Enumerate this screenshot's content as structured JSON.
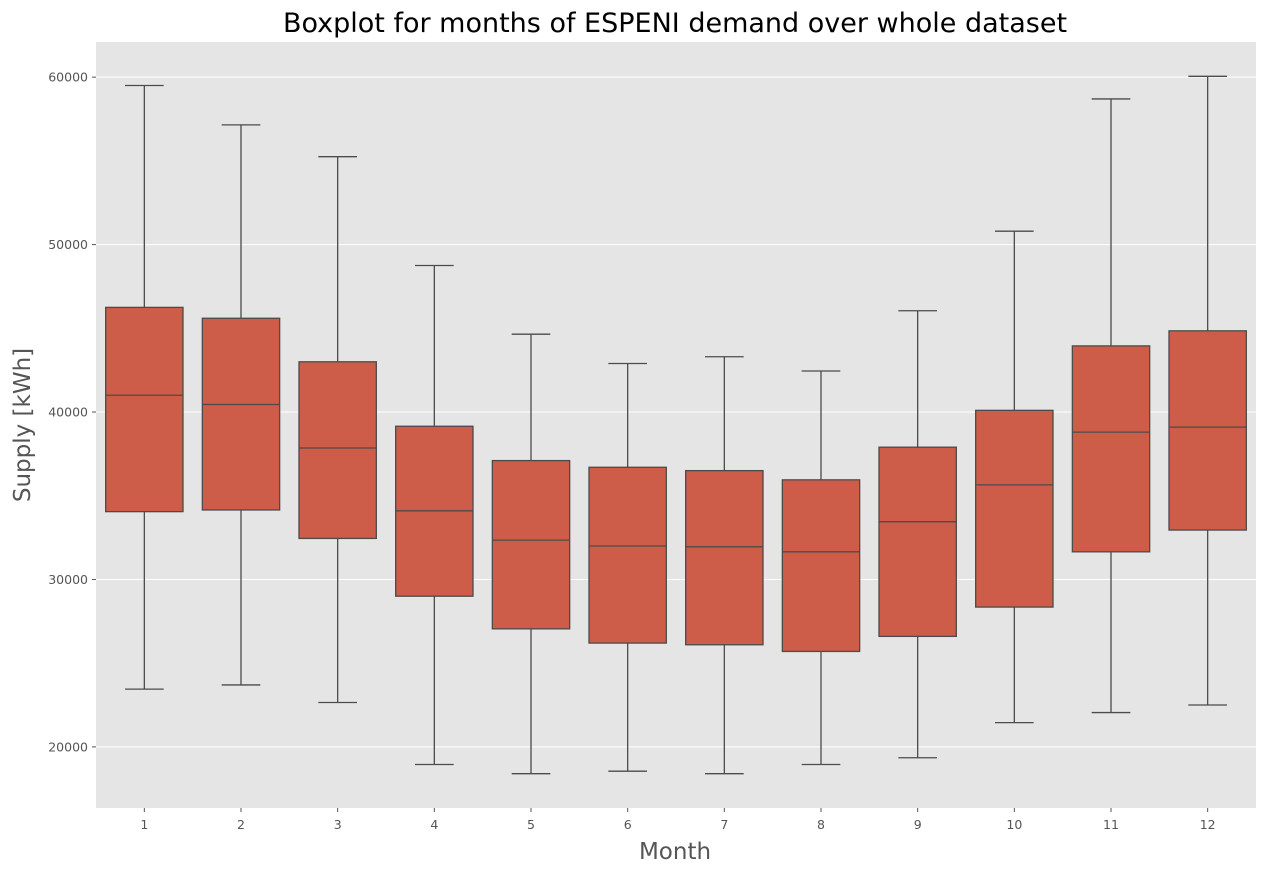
{
  "chart_data": {
    "type": "box",
    "title": "Boxplot for months of ESPENI demand over whole dataset",
    "xlabel": "Month",
    "ylabel": "Supply [kWh]",
    "categories": [
      "1",
      "2",
      "3",
      "4",
      "5",
      "6",
      "7",
      "8",
      "9",
      "10",
      "11",
      "12"
    ],
    "boxes": [
      {
        "whisker_low": 23450,
        "q1": 34050,
        "median": 41000,
        "q3": 46250,
        "whisker_high": 59500
      },
      {
        "whisker_low": 23700,
        "q1": 34150,
        "median": 40450,
        "q3": 45600,
        "whisker_high": 57150
      },
      {
        "whisker_low": 22650,
        "q1": 32450,
        "median": 37850,
        "q3": 43000,
        "whisker_high": 55250
      },
      {
        "whisker_low": 18950,
        "q1": 29000,
        "median": 34100,
        "q3": 39150,
        "whisker_high": 48750
      },
      {
        "whisker_low": 18400,
        "q1": 27050,
        "median": 32350,
        "q3": 37100,
        "whisker_high": 44650
      },
      {
        "whisker_low": 18550,
        "q1": 26200,
        "median": 32000,
        "q3": 36700,
        "whisker_high": 42900
      },
      {
        "whisker_low": 18400,
        "q1": 26100,
        "median": 31950,
        "q3": 36500,
        "whisker_high": 43300
      },
      {
        "whisker_low": 18950,
        "q1": 25700,
        "median": 31650,
        "q3": 35950,
        "whisker_high": 42450
      },
      {
        "whisker_low": 19350,
        "q1": 26600,
        "median": 33450,
        "q3": 37900,
        "whisker_high": 46050
      },
      {
        "whisker_low": 21450,
        "q1": 28350,
        "median": 35650,
        "q3": 40100,
        "whisker_high": 50800
      },
      {
        "whisker_low": 22050,
        "q1": 31650,
        "median": 38800,
        "q3": 43950,
        "whisker_high": 58700
      },
      {
        "whisker_low": 22500,
        "q1": 32950,
        "median": 39100,
        "q3": 44850,
        "whisker_high": 60050
      }
    ],
    "ylim": [
      16350,
      62100
    ],
    "yticks": [
      20000,
      30000,
      40000,
      50000,
      60000
    ],
    "grid": true,
    "colors": {
      "box_fill": "#cd5c48",
      "line": "#4b4b4b",
      "plot_background": "#e5e5e5",
      "grid": "#ffffff",
      "tick_text": "#555555",
      "title_text": "#000000"
    }
  }
}
